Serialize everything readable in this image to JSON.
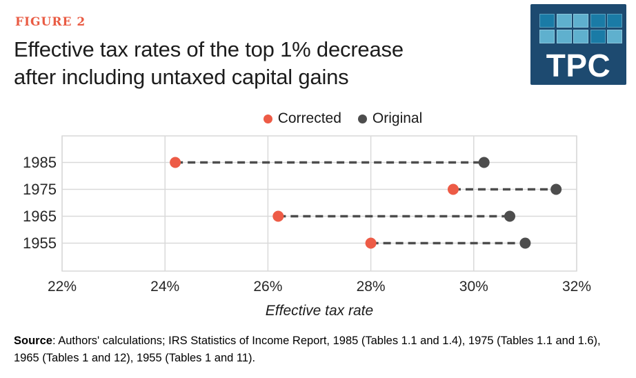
{
  "figure_label": "FIGURE 2",
  "title_line1": "Effective tax rates of the top 1% decrease",
  "title_line2": "after including untaxed capital gains",
  "logo": {
    "text": "TPC",
    "background": "#1d4a70",
    "square_colors": [
      "#1a7ba6",
      "#5fb0ce",
      "#5fb0ce",
      "#1a7ba6",
      "#1a7ba6",
      "#5fb0ce",
      "#5fb0ce",
      "#5fb0ce",
      "#1a7ba6",
      "#5fb0ce"
    ]
  },
  "legend": [
    {
      "label": "Corrected",
      "color": "#ed5b46"
    },
    {
      "label": "Original",
      "color": "#4d4d4d"
    }
  ],
  "chart_data": {
    "type": "scatter",
    "variant": "dumbbell-dot-plot",
    "categories": [
      "1985",
      "1975",
      "1965",
      "1955"
    ],
    "series": [
      {
        "name": "Corrected",
        "color": "#ed5b46",
        "values": [
          24.2,
          29.6,
          26.2,
          28.0
        ]
      },
      {
        "name": "Original",
        "color": "#4d4d4d",
        "values": [
          30.2,
          31.6,
          30.7,
          31.0
        ]
      }
    ],
    "connector_style": "dashed",
    "xlabel": "Effective tax rate",
    "ylabel": "",
    "xlim": [
      22,
      32
    ],
    "x_ticks": [
      {
        "value": 22,
        "label": "22%"
      },
      {
        "value": 24,
        "label": "24%"
      },
      {
        "value": 26,
        "label": "26%"
      },
      {
        "value": 28,
        "label": "28%"
      },
      {
        "value": 30,
        "label": "30%"
      },
      {
        "value": 32,
        "label": "32%"
      }
    ],
    "grid": true,
    "grid_color": "#d9d9d9",
    "legend_position": "top-center"
  },
  "source": {
    "bold": "Source",
    "rest": ": Authors' calculations; IRS Statistics of Income Report, 1985 (Tables 1.1 and 1.4), 1975 (Tables 1.1 and 1.6), 1965 (Tables 1 and 12), 1955 (Tables 1 and 11)."
  }
}
